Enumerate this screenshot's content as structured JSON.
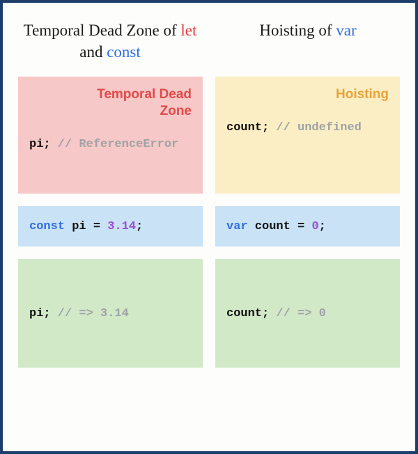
{
  "colors": {
    "frame_border": "#1d3d6b",
    "keyword_let": "#e23b3b",
    "keyword_const": "#2f6fe0",
    "keyword_var": "#2f6fe0",
    "tdz_bg": "#f6c8c7",
    "hoist_bg": "#fbeec4",
    "decl_bg": "#c9e2f5",
    "after_bg": "#d2e9c8",
    "badge_tdz": "#e24a4a",
    "badge_hoist": "#e9a23b",
    "code_keyword": "#2f6fe0",
    "code_number": "#9b4dd8",
    "comment": "#9fa3a7",
    "ident": "#111111"
  },
  "left": {
    "title_pre": "Temporal Dead Zone of ",
    "title_kw1": "let",
    "title_mid": " and ",
    "title_kw2": "const",
    "badge": "Temporal Dead Zone",
    "tdz_ident": "pi;",
    "tdz_comment": " // ReferenceError",
    "decl_kw": "const",
    "decl_rest": " pi = ",
    "decl_num": "3.14",
    "decl_tail": ";",
    "after_ident": "pi;",
    "after_comment": " // => 3.14"
  },
  "right": {
    "title_pre": "Hoisting of ",
    "title_kw1": "var",
    "badge": "Hoisting",
    "tdz_ident": "count;",
    "tdz_comment": " // undefined",
    "decl_kw": "var",
    "decl_rest": " count = ",
    "decl_num": "0",
    "decl_tail": ";",
    "after_ident": "count;",
    "after_comment": " // => 0"
  }
}
